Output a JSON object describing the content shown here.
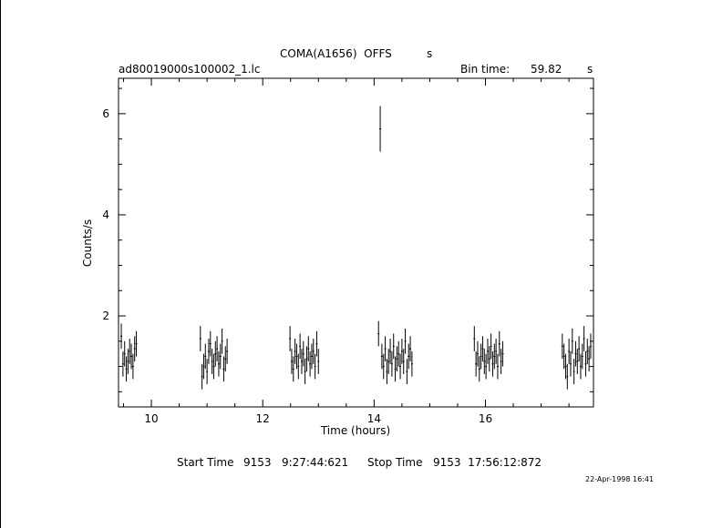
{
  "header": {
    "title": "COMA(A1656)  OFFS",
    "title_suffix": "s",
    "filename": "ad80019000s100002_1.lc",
    "bin_label": "Bin time:",
    "bin_value": "59.82",
    "bin_unit": "s"
  },
  "footer": {
    "start_label": "Start Time",
    "start_value": "9153   9:27:44:621",
    "stop_label": "Stop Time",
    "stop_value": "9153  17:56:12:872",
    "date_stamp": "22-Apr-1998 16:41"
  },
  "chart_data": {
    "type": "scatter",
    "title": "COMA(A1656)  OFFS",
    "xlabel": "Time (hours)",
    "ylabel": "Counts/s",
    "xlim": [
      9.41,
      17.94
    ],
    "ylim": [
      0.2,
      6.7
    ],
    "x_ticks": [
      10,
      12,
      14,
      16
    ],
    "y_ticks": [
      2,
      4,
      6
    ],
    "grid": false,
    "series": [
      {
        "error_bars": true,
        "x": [
          9.46,
          9.49,
          9.52,
          9.55,
          9.58,
          9.61,
          9.64,
          9.67,
          9.7,
          9.73,
          10.88,
          10.91,
          10.94,
          10.97,
          11.0,
          11.03,
          11.06,
          11.09,
          11.12,
          11.15,
          11.18,
          11.21,
          11.24,
          11.27,
          11.3,
          11.33,
          11.36,
          12.49,
          12.52,
          12.55,
          12.58,
          12.61,
          12.64,
          12.67,
          12.7,
          12.73,
          12.76,
          12.79,
          12.82,
          12.85,
          12.88,
          12.91,
          12.94,
          12.97,
          13.0,
          14.08,
          14.11,
          14.14,
          14.17,
          14.2,
          14.23,
          14.26,
          14.29,
          14.32,
          14.35,
          14.38,
          14.41,
          14.44,
          14.47,
          14.5,
          14.53,
          14.56,
          14.59,
          14.62,
          14.65,
          14.68,
          15.8,
          15.83,
          15.86,
          15.89,
          15.92,
          15.95,
          15.98,
          16.01,
          16.04,
          16.07,
          16.1,
          16.13,
          16.16,
          16.19,
          16.22,
          16.25,
          16.28,
          16.31,
          17.38,
          17.41,
          17.44,
          17.47,
          17.5,
          17.53,
          17.56,
          17.59,
          17.62,
          17.65,
          17.68,
          17.71,
          17.74,
          17.77,
          17.8,
          17.83,
          17.86,
          17.89
        ],
        "y": [
          1.6,
          1.05,
          1.25,
          0.95,
          1.1,
          1.3,
          1.2,
          1.0,
          1.35,
          1.45,
          1.55,
          0.8,
          1.0,
          1.2,
          0.9,
          1.3,
          1.45,
          1.1,
          1.0,
          1.25,
          1.35,
          1.05,
          1.2,
          1.5,
          0.95,
          1.15,
          1.3,
          1.55,
          1.1,
          0.95,
          1.3,
          1.2,
          1.0,
          1.4,
          1.1,
          1.25,
          0.9,
          1.15,
          1.35,
          1.05,
          1.2,
          1.3,
          1.0,
          1.45,
          1.1,
          1.65,
          5.7,
          1.2,
          1.0,
          1.35,
          0.9,
          1.1,
          1.3,
          1.05,
          1.4,
          0.95,
          1.15,
          1.25,
          1.0,
          1.3,
          1.1,
          1.5,
          0.9,
          1.2,
          1.35,
          1.05,
          1.55,
          1.05,
          1.25,
          0.95,
          1.2,
          1.35,
          1.1,
          1.0,
          1.3,
          1.15,
          1.4,
          1.05,
          1.2,
          1.3,
          1.0,
          1.45,
          1.1,
          1.25,
          1.4,
          1.2,
          1.0,
          0.8,
          1.3,
          1.05,
          1.5,
          0.9,
          1.25,
          1.1,
          1.35,
          1.0,
          1.2,
          1.55,
          1.05,
          1.3,
          1.15,
          1.4
        ],
        "yerr": 0.25,
        "yerr_outlier": 0.45
      }
    ]
  }
}
